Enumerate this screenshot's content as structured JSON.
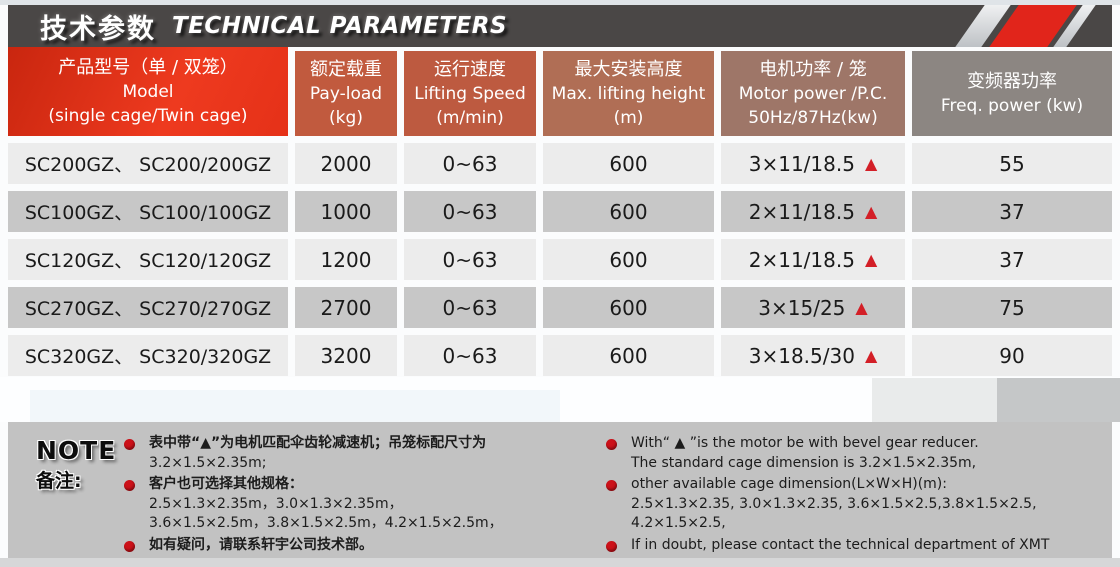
{
  "titlebar": {
    "title_zh": "技术参数",
    "title_en": "TECHNICAL PARAMETERS"
  },
  "table": {
    "triangle": "▲",
    "columns": [
      {
        "line1": "产品型号（单 / 双笼）",
        "line2": "Model",
        "line3": "(single cage/Twin cage)"
      },
      {
        "line1": "额定载重",
        "line2": "Pay-load",
        "line3": "(kg)"
      },
      {
        "line1": "运行速度",
        "line2": "Lifting Speed",
        "line3": "(m/min)"
      },
      {
        "line1": "最大安装高度",
        "line2": "Max. lifting height",
        "line3": "(m)"
      },
      {
        "line1": "电机功率 / 笼",
        "line2": "Motor power /P.C.",
        "line3": "50Hz/87Hz(kw)"
      },
      {
        "line1": "变频器功率",
        "line2": "Freq. power (kw)",
        "line3": ""
      }
    ],
    "rows": [
      {
        "model": "SC200GZ、 SC200/200GZ",
        "payload": "2000",
        "speed": "0~63",
        "max_height": "600",
        "motor_power": "3×11/18.5",
        "freq_power": "55"
      },
      {
        "model": "SC100GZ、 SC100/100GZ",
        "payload": "1000",
        "speed": "0~63",
        "max_height": "600",
        "motor_power": "2×11/18.5",
        "freq_power": "37"
      },
      {
        "model": "SC120GZ、 SC120/120GZ",
        "payload": "1200",
        "speed": "0~63",
        "max_height": "600",
        "motor_power": "2×11/18.5",
        "freq_power": "37"
      },
      {
        "model": "SC270GZ、 SC270/270GZ",
        "payload": "2700",
        "speed": "0~63",
        "max_height": "600",
        "motor_power": "3×15/25",
        "freq_power": "75"
      },
      {
        "model": "SC320GZ、 SC320/320GZ",
        "payload": "3200",
        "speed": "0~63",
        "max_height": "600",
        "motor_power": "3×18.5/30",
        "freq_power": "90"
      }
    ]
  },
  "notes": {
    "label_en": "NOTE",
    "label_zh": "备注:",
    "zh_items": [
      {
        "lines": [
          "表中带“▲”为电机匹配伞齿轮减速机；吊笼标配尺寸为",
          "3.2×1.5×2.35m;"
        ]
      },
      {
        "lines": [
          "客户也可选择其他规格：",
          "2.5×1.3×2.35m，3.0×1.3×2.35m，",
          "3.6×1.5×2.5m，3.8×1.5×2.5m，4.2×1.5×2.5m，"
        ]
      },
      {
        "lines": [
          "如有疑问，请联系轩宇公司技术部。"
        ]
      }
    ],
    "en_items": [
      {
        "lines": [
          "With“ ▲ ”is the motor be with bevel gear reducer.",
          "The standard cage dimension is 3.2×1.5×2.35m,"
        ]
      },
      {
        "lines": [
          "other available cage dimension(L×W×H)(m):",
          "2.5×1.3×2.35, 3.0×1.3×2.35, 3.6×1.5×2.5,3.8×1.5×2.5, 4.2×1.5×2.5,"
        ]
      },
      {
        "lines": [
          "If in doubt, please contact the technical department of XMT"
        ]
      }
    ]
  },
  "colors": {
    "title_bar": "#4a4746",
    "accent_red": "#e1251b",
    "header_col1_red": "#e53118",
    "header_col6_gray": "#8c8682",
    "row_light": "#ececec",
    "row_dark": "#c7c7c7",
    "note_panel": "#c2c2c2",
    "bullet_red": "#cc1119",
    "triangle_red": "#d31f27"
  }
}
